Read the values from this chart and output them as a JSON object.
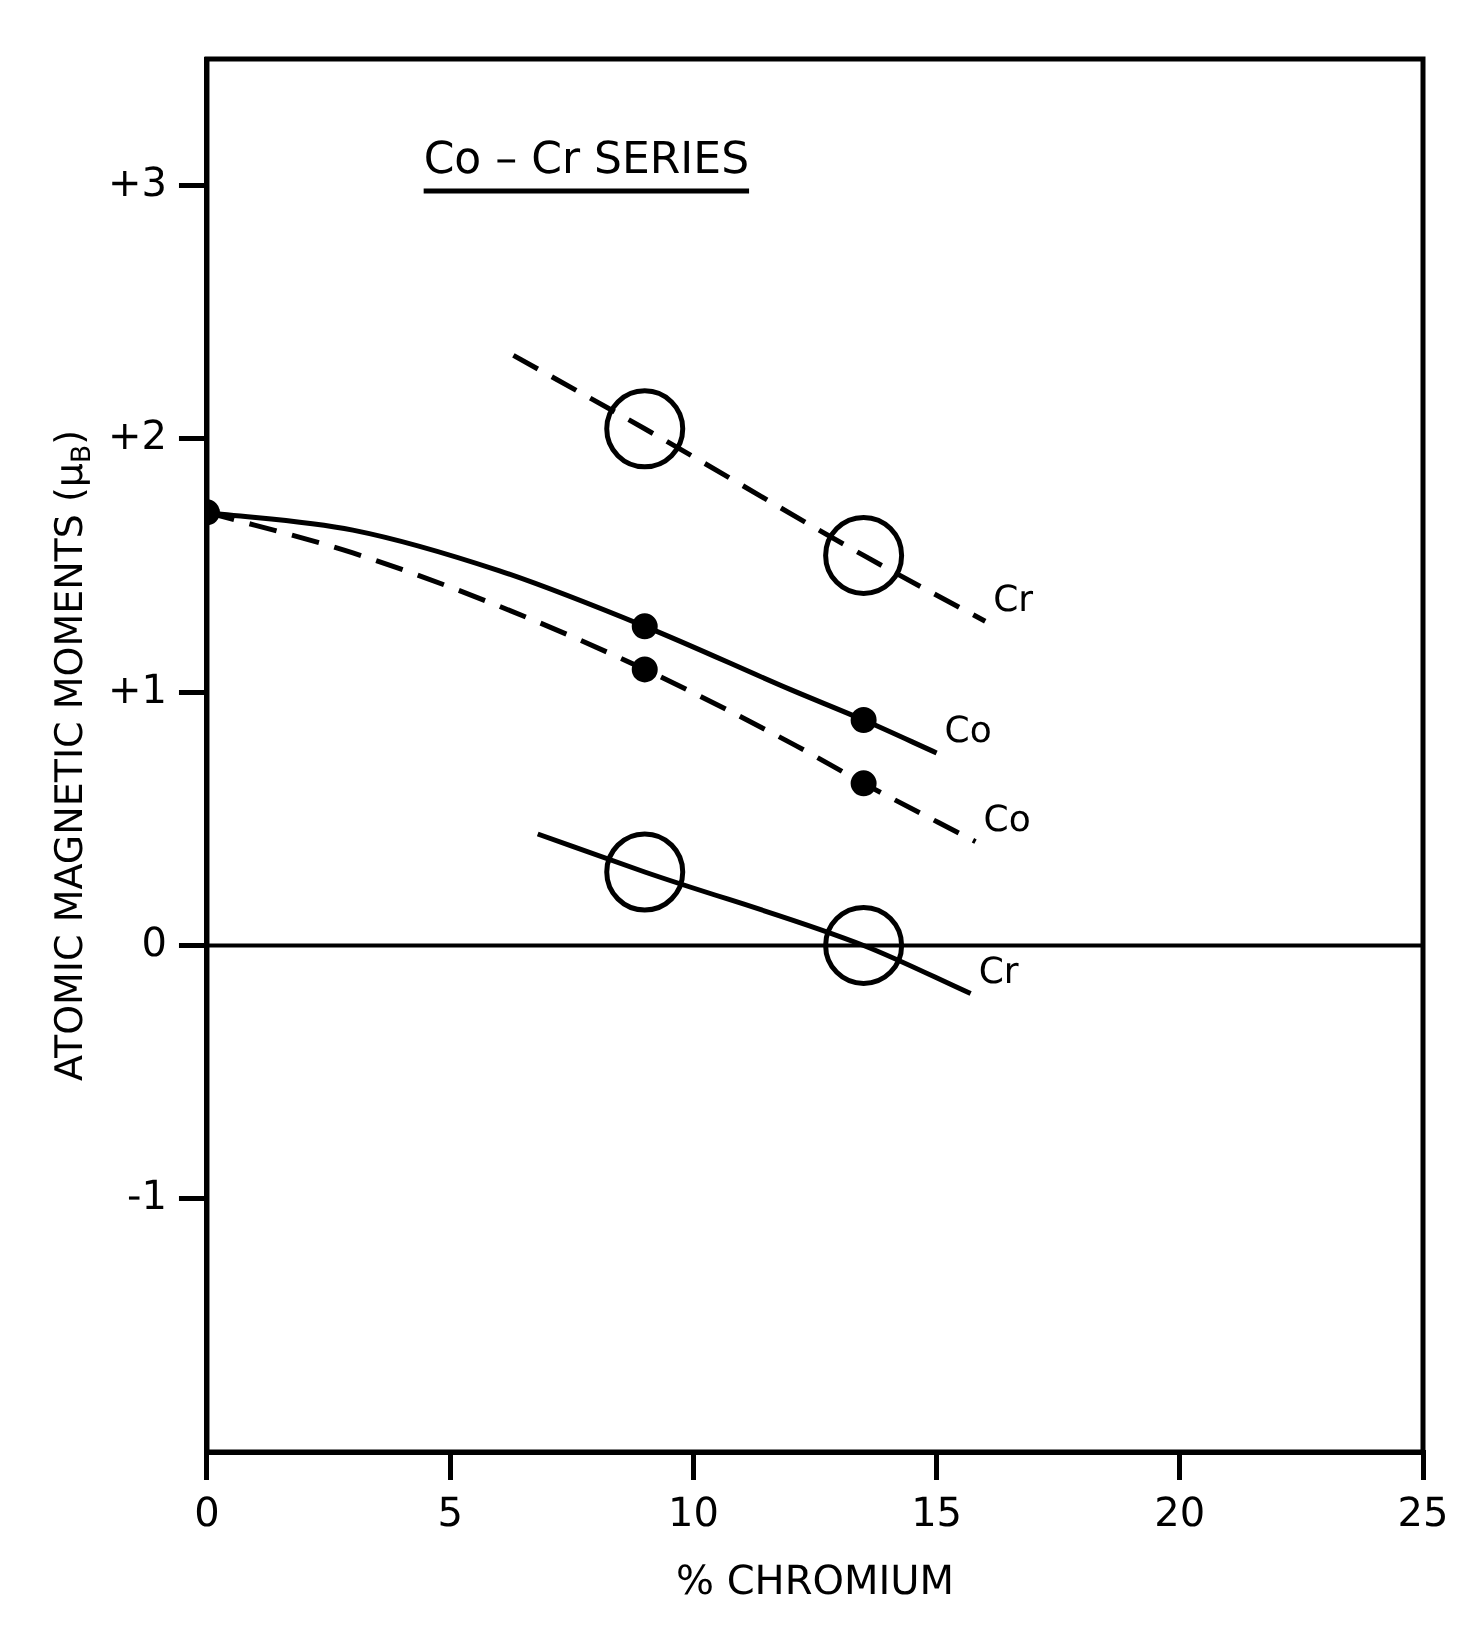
{
  "chart_data": {
    "type": "line",
    "title": "Co – Cr SERIES",
    "xlabel": "% CHROMIUM",
    "ylabel": "ATOMIC MAGNETIC MOMENTS (μ$_{B}$)",
    "xlim": [
      0,
      25
    ],
    "xticks": [
      0,
      5,
      10,
      15,
      20,
      25
    ],
    "ylim": [
      -2,
      3.5
    ],
    "yticks": [
      {
        "value": 3,
        "label": "+3"
      },
      {
        "value": 2,
        "label": "+2"
      },
      {
        "value": 1,
        "label": "+1"
      },
      0,
      -1
    ],
    "grid": false,
    "legend": false,
    "ref_lines": [
      {
        "axis": "y",
        "value": 0,
        "color": "#000000",
        "line_style": "solid"
      }
    ],
    "series": [
      {
        "name": "Co",
        "color": "#000000",
        "line_style": "solid",
        "marker": "none",
        "x": [
          0,
          3,
          6,
          9,
          12,
          13.5,
          15
        ],
        "values": [
          1.71,
          1.64,
          1.48,
          1.26,
          1.01,
          0.89,
          0.76
        ]
      },
      {
        "name": "Co",
        "color": "#000000",
        "line_style": "dashed",
        "marker": "none",
        "x": [
          0,
          3,
          6,
          9,
          12,
          13.5,
          15.8
        ],
        "values": [
          1.71,
          1.55,
          1.34,
          1.09,
          0.8,
          0.64,
          0.41
        ]
      },
      {
        "name": "Cr",
        "color": "#000000",
        "line_style": "dashed",
        "marker": "none",
        "x": [
          6.3,
          9,
          13.5,
          16
        ],
        "values": [
          2.33,
          2.04,
          1.54,
          1.28
        ]
      },
      {
        "name": "Cr",
        "color": "#000000",
        "line_style": "solid",
        "marker": "none",
        "x": [
          6.8,
          9,
          13.5,
          15.7
        ],
        "values": [
          0.44,
          0.29,
          0,
          -0.19
        ]
      },
      {
        "type": "scatter",
        "color": "#000000",
        "marker": "circle",
        "x": [
          0,
          9,
          13.5,
          9,
          13.5
        ],
        "values": [
          1.71,
          1.26,
          0.89,
          1.09,
          0.64
        ]
      },
      {
        "type": "bubble",
        "color": "#ffffff",
        "x": [
          9,
          13.5,
          9,
          13.5
        ],
        "values": [
          2.04,
          1.54,
          0.29,
          0
        ],
        "sizes": [
          1,
          1,
          1,
          1
        ]
      }
    ]
  }
}
